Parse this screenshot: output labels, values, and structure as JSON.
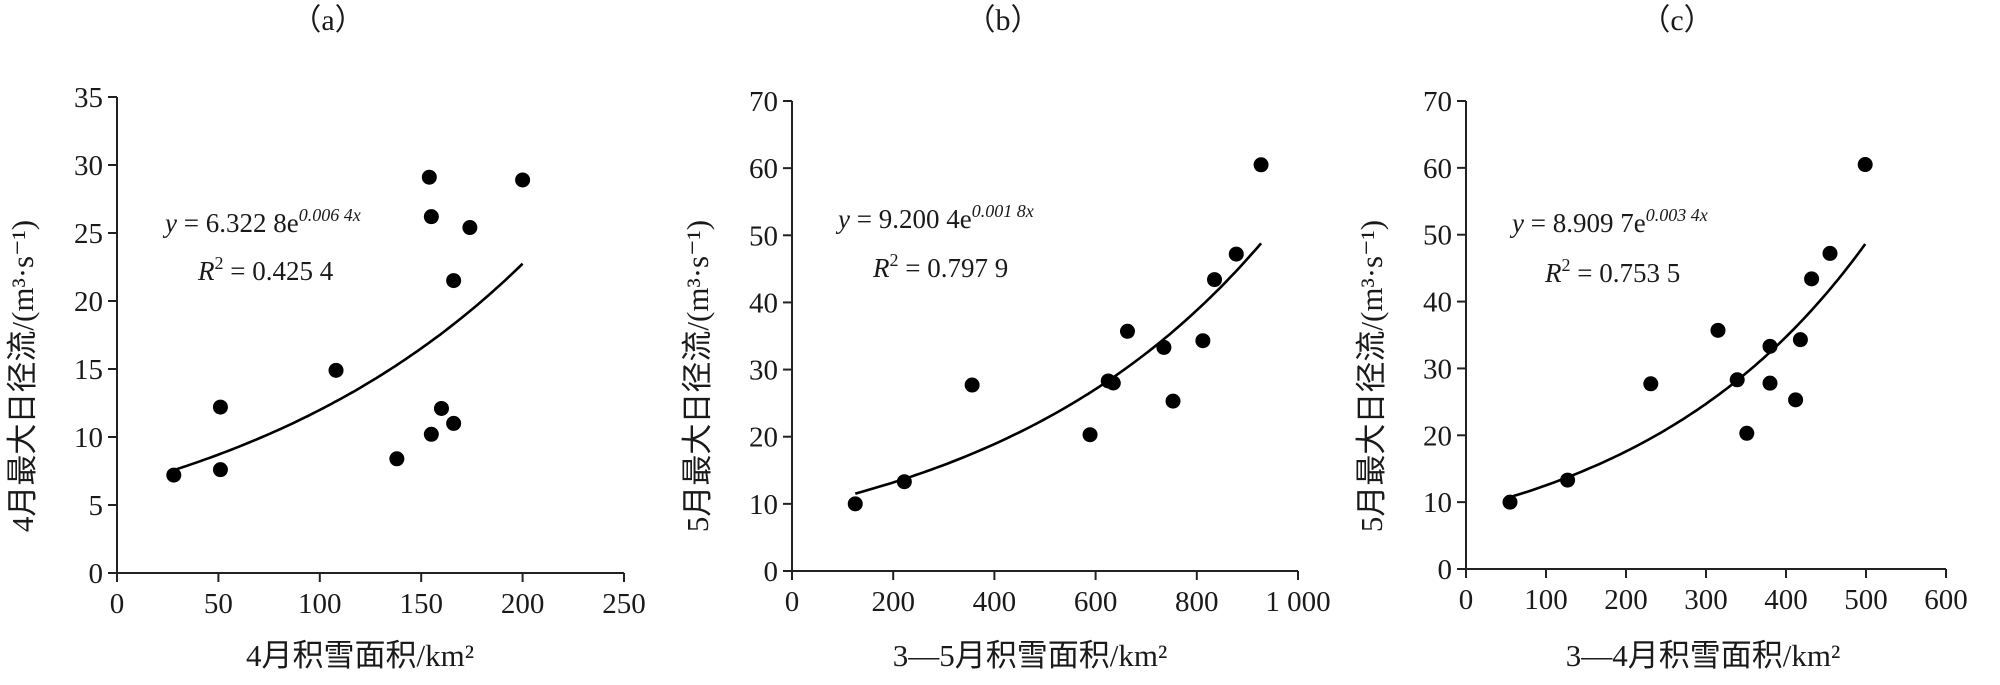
{
  "chart_data": [
    {
      "type": "scatter",
      "panel_label": "（a）",
      "xlabel": "4月积雪面积/km²",
      "ylabel": "4月最大日径流/(m³·s⁻¹)",
      "xlim": [
        0,
        250
      ],
      "ylim": [
        0,
        35
      ],
      "xticks": [
        0,
        50,
        100,
        150,
        200,
        250
      ],
      "yticks": [
        0,
        5,
        10,
        15,
        20,
        25,
        30,
        35
      ],
      "points": [
        [
          28,
          7.2
        ],
        [
          51,
          12.2
        ],
        [
          51,
          7.6
        ],
        [
          108,
          14.9
        ],
        [
          138,
          8.4
        ],
        [
          154,
          29.1
        ],
        [
          155,
          26.2
        ],
        [
          155,
          10.2
        ],
        [
          160,
          12.1
        ],
        [
          166,
          21.5
        ],
        [
          166,
          11.0
        ],
        [
          174,
          25.4
        ],
        [
          200,
          28.9
        ]
      ],
      "fit": {
        "a": 6.3228,
        "b": 0.0064,
        "xrange": [
          28,
          200
        ]
      },
      "equation": {
        "prefix": "y",
        "eq": " = 6.322 8e",
        "exp": "0.006 4x"
      },
      "r2": {
        "r": "R",
        "sup": "2",
        "value": " = 0.425 4"
      }
    },
    {
      "type": "scatter",
      "panel_label": "（b）",
      "xlabel": "3—5月积雪面积/km²",
      "ylabel": "5月最大日径流/(m³·s⁻¹)",
      "xlim": [
        0,
        1000
      ],
      "ylim": [
        0,
        70
      ],
      "xticks": [
        0,
        200,
        400,
        600,
        800,
        1000
      ],
      "xtick_labels": [
        "0",
        "200",
        "400",
        "600",
        "800",
        "1 000"
      ],
      "yticks": [
        0,
        10,
        20,
        30,
        40,
        50,
        60,
        70
      ],
      "points": [
        [
          125,
          10.0
        ],
        [
          222,
          13.3
        ],
        [
          356,
          27.7
        ],
        [
          589,
          20.3
        ],
        [
          625,
          28.3
        ],
        [
          635,
          28.0
        ],
        [
          663,
          35.7
        ],
        [
          735,
          33.3
        ],
        [
          753,
          25.3
        ],
        [
          812,
          34.3
        ],
        [
          835,
          43.4
        ],
        [
          878,
          47.2
        ],
        [
          927,
          60.5
        ]
      ],
      "fit": {
        "a": 9.2004,
        "b": 0.0018,
        "xrange": [
          125,
          927
        ]
      },
      "equation": {
        "prefix": "y",
        "eq": " = 9.200 4e",
        "exp": "0.001 8x"
      },
      "r2": {
        "r": "R",
        "sup": "2",
        "value": " = 0.797 9"
      }
    },
    {
      "type": "scatter",
      "panel_label": "（c）",
      "xlabel": "3—4月积雪面积/km²",
      "ylabel": "5月最大日径流/(m³·s⁻¹)",
      "xlim": [
        0,
        600
      ],
      "ylim": [
        0,
        70
      ],
      "xticks": [
        0,
        100,
        200,
        300,
        400,
        500,
        600
      ],
      "yticks": [
        0,
        10,
        20,
        30,
        40,
        50,
        60,
        70
      ],
      "points": [
        [
          55,
          10.0
        ],
        [
          127,
          13.3
        ],
        [
          231,
          27.7
        ],
        [
          315,
          35.7
        ],
        [
          339,
          28.3
        ],
        [
          351,
          20.3
        ],
        [
          380,
          33.3
        ],
        [
          380,
          27.8
        ],
        [
          412,
          25.3
        ],
        [
          418,
          34.3
        ],
        [
          432,
          43.4
        ],
        [
          455,
          47.2
        ],
        [
          499,
          60.5
        ]
      ],
      "fit": {
        "a": 8.9097,
        "b": 0.0034,
        "xrange": [
          55,
          499
        ]
      },
      "equation": {
        "prefix": "y",
        "eq": " = 8.909 7e",
        "exp": "0.003 4x"
      },
      "r2": {
        "r": "R",
        "sup": "2",
        "value": " = 0.753 5"
      }
    }
  ]
}
